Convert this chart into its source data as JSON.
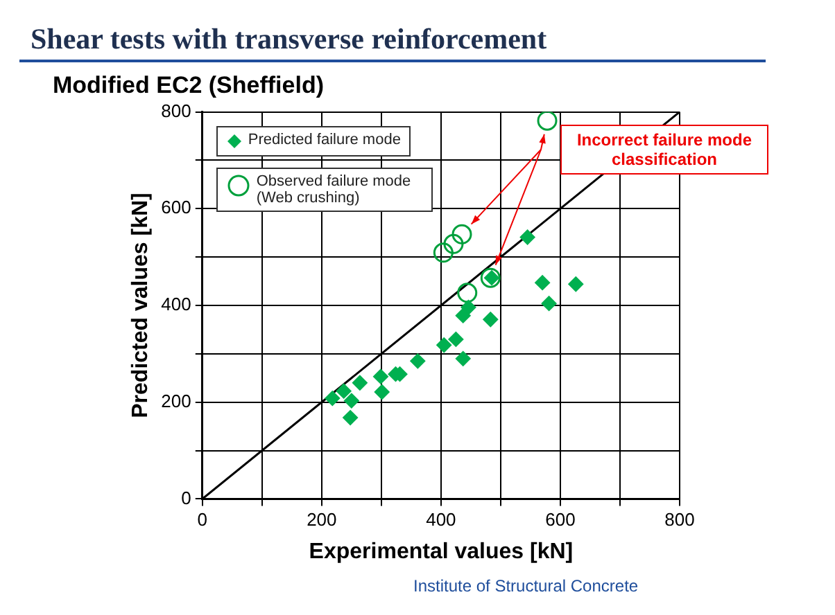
{
  "chart_data": {
    "type": "scatter",
    "title": "Shear tests with transverse reinforcement",
    "subtitle": "Modified EC2 (Sheffield)",
    "xlabel": "Experimental values [kN]",
    "ylabel": "Predicted values [kN]",
    "xlim": [
      0,
      800
    ],
    "ylim": [
      0,
      800
    ],
    "xticks": [
      0,
      {
        "value": 100,
        "label": null
      },
      200,
      {
        "value": 300,
        "label": null
      },
      400,
      {
        "value": 500,
        "label": null
      },
      600,
      {
        "value": 700,
        "label": null
      },
      800
    ],
    "yticks": [
      0,
      {
        "value": 100,
        "label": null
      },
      200,
      {
        "value": 300,
        "label": null
      },
      400,
      {
        "value": 500,
        "label": null
      },
      600,
      {
        "value": 700,
        "label": null
      },
      800
    ],
    "grid": true,
    "legend": "top left",
    "series": [
      {
        "name": "Predicted failure mode",
        "color": "#00b050",
        "marker": "diamond",
        "x": [
          218,
          237,
          250,
          248,
          264,
          299,
          301,
          324,
          331,
          361,
          405,
          425,
          437,
          437,
          446,
          483,
          485,
          545,
          570,
          581,
          626
        ],
        "values": [
          208,
          223,
          203,
          168,
          240,
          253,
          221,
          258,
          258,
          285,
          318,
          330,
          290,
          379,
          396,
          371,
          457,
          541,
          447,
          404,
          444
        ]
      },
      {
        "name": "Observed failure mode (Web crushing)",
        "color": "#00a03c",
        "marker": "circle",
        "x": [
          578,
          404,
          421,
          435,
          483,
          444
        ],
        "values": [
          782,
          509,
          527,
          547,
          457,
          426
        ]
      },
      {
        "type": "line",
        "color": "#000000",
        "marker": "none",
        "x": [
          0,
          800
        ],
        "values": [
          0,
          800
        ]
      }
    ],
    "annotations": [
      "Incorrect failure mode classification",
      "Institute of Structural Concrete"
    ]
  }
}
